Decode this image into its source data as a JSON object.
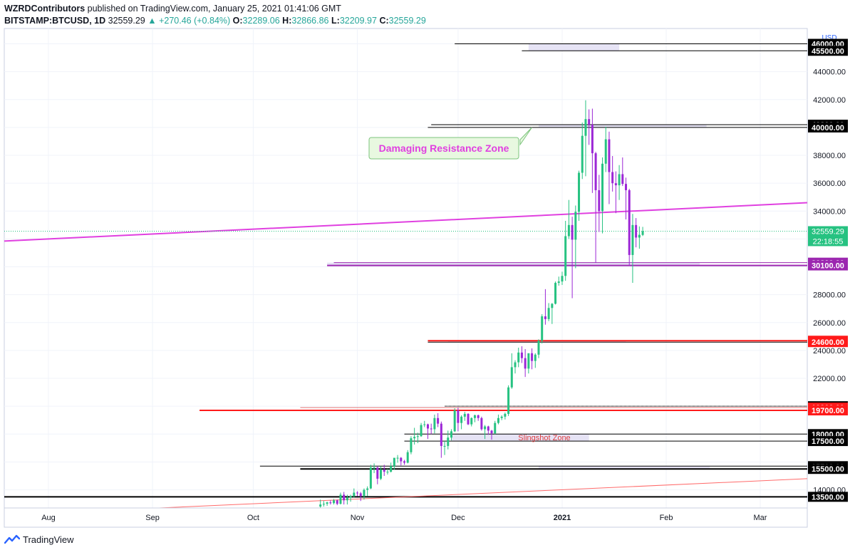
{
  "header": {
    "publisher": "WZRDContributors",
    "published_text": "published on TradingView.com, January 25, 2021 01:41:06 GMT",
    "symbol": "BITSTAMP:BTCUSD, 1D",
    "last": "32559.29",
    "change": "▲ +270.46 (+0.84%)",
    "open_label": "O:",
    "open": "32289.06",
    "high_label": "H:",
    "high": "32866.86",
    "low_label": "L:",
    "low": "32209.97",
    "close_label": "C:",
    "close": "32559.29"
  },
  "footer": {
    "brand": "TradingView",
    "logo_icon": "tradingview-logo-icon"
  },
  "colors": {
    "up": "#26c281",
    "down": "#9c27d6",
    "trend_magenta": "#e040e0",
    "support_purple": "#9c27b0",
    "red": "#ff1a1a",
    "zone_fill": "#e6e3f5",
    "callout_bg": "#e8f8e0",
    "callout_border": "#7cc47c",
    "callout_text": "#e040e0",
    "grid": "#f0f3fa",
    "axis_text": "#131722",
    "price_badge": "#26c281"
  },
  "chart_data": {
    "type": "candlestick",
    "symbol": "BITSTAMP:BTCUSD",
    "interval": "1D",
    "currency_label": "USD",
    "x_labels": [
      "Aug",
      "Sep",
      "Oct",
      "Nov",
      "Dec",
      "2021",
      "Feb",
      "Mar"
    ],
    "x_label_dates": [
      "2020-08-01",
      "2020-09-01",
      "2020-10-01",
      "2020-11-01",
      "2020-12-01",
      "2021-01-01",
      "2021-02-01",
      "2021-03-01"
    ],
    "y_range": [
      12700,
      47100
    ],
    "y_ticks": [
      14000,
      16000,
      18000,
      20000,
      22000,
      24000,
      26000,
      28000,
      30000,
      32000,
      34000,
      36000,
      38000,
      40000,
      42000,
      44000,
      46000
    ],
    "last_price": "32559.29",
    "countdown": "22:18:55",
    "grid": true,
    "candles": [
      {
        "d": "2020-10-21",
        "o": 12800,
        "h": 13300,
        "l": 12700,
        "c": 12950
      },
      {
        "d": "2020-10-22",
        "o": 12950,
        "h": 13200,
        "l": 12800,
        "c": 13000
      },
      {
        "d": "2020-10-23",
        "o": 13000,
        "h": 13150,
        "l": 12850,
        "c": 13100
      },
      {
        "d": "2020-10-24",
        "o": 13100,
        "h": 13250,
        "l": 12950,
        "c": 13050
      },
      {
        "d": "2020-10-25",
        "o": 13050,
        "h": 13350,
        "l": 12950,
        "c": 13250
      },
      {
        "d": "2020-10-26",
        "o": 13250,
        "h": 13300,
        "l": 12900,
        "c": 13000
      },
      {
        "d": "2020-10-27",
        "o": 13000,
        "h": 13800,
        "l": 12950,
        "c": 13650
      },
      {
        "d": "2020-10-28",
        "o": 13650,
        "h": 13850,
        "l": 12950,
        "c": 13250
      },
      {
        "d": "2020-10-29",
        "o": 13250,
        "h": 13650,
        "l": 12950,
        "c": 13450
      },
      {
        "d": "2020-10-30",
        "o": 13450,
        "h": 13650,
        "l": 13150,
        "c": 13550
      },
      {
        "d": "2020-10-31",
        "o": 13550,
        "h": 14100,
        "l": 13450,
        "c": 13800
      },
      {
        "d": "2020-11-01",
        "o": 13800,
        "h": 13900,
        "l": 13550,
        "c": 13750
      },
      {
        "d": "2020-11-02",
        "o": 13750,
        "h": 13850,
        "l": 13200,
        "c": 13550
      },
      {
        "d": "2020-11-03",
        "o": 13550,
        "h": 14100,
        "l": 13300,
        "c": 14000
      },
      {
        "d": "2020-11-04",
        "o": 14000,
        "h": 14250,
        "l": 13550,
        "c": 14100
      },
      {
        "d": "2020-11-05",
        "o": 14100,
        "h": 15800,
        "l": 14050,
        "c": 15600
      },
      {
        "d": "2020-11-06",
        "o": 15600,
        "h": 15900,
        "l": 15200,
        "c": 15600
      },
      {
        "d": "2020-11-07",
        "o": 15600,
        "h": 15700,
        "l": 14400,
        "c": 14800
      },
      {
        "d": "2020-11-08",
        "o": 14800,
        "h": 15700,
        "l": 14700,
        "c": 15450
      },
      {
        "d": "2020-11-09",
        "o": 15450,
        "h": 15800,
        "l": 15000,
        "c": 15300
      },
      {
        "d": "2020-11-10",
        "o": 15300,
        "h": 15500,
        "l": 15100,
        "c": 15300
      },
      {
        "d": "2020-11-11",
        "o": 15300,
        "h": 15950,
        "l": 15250,
        "c": 15700
      },
      {
        "d": "2020-11-12",
        "o": 15700,
        "h": 16200,
        "l": 15450,
        "c": 16300
      },
      {
        "d": "2020-11-13",
        "o": 16300,
        "h": 16500,
        "l": 15950,
        "c": 16300
      },
      {
        "d": "2020-11-14",
        "o": 16300,
        "h": 16350,
        "l": 15750,
        "c": 16050
      },
      {
        "d": "2020-11-15",
        "o": 16050,
        "h": 16150,
        "l": 15800,
        "c": 15950
      },
      {
        "d": "2020-11-16",
        "o": 15950,
        "h": 16850,
        "l": 15900,
        "c": 16700
      },
      {
        "d": "2020-11-17",
        "o": 16700,
        "h": 17850,
        "l": 16550,
        "c": 17700
      },
      {
        "d": "2020-11-18",
        "o": 17700,
        "h": 18450,
        "l": 17250,
        "c": 17800
      },
      {
        "d": "2020-11-19",
        "o": 17800,
        "h": 18100,
        "l": 17350,
        "c": 17850
      },
      {
        "d": "2020-11-20",
        "o": 17850,
        "h": 18800,
        "l": 17800,
        "c": 18650
      },
      {
        "d": "2020-11-21",
        "o": 18650,
        "h": 18950,
        "l": 18500,
        "c": 18700
      },
      {
        "d": "2020-11-22",
        "o": 18700,
        "h": 18750,
        "l": 17650,
        "c": 18400
      },
      {
        "d": "2020-11-23",
        "o": 18400,
        "h": 18750,
        "l": 18000,
        "c": 18350
      },
      {
        "d": "2020-11-24",
        "o": 18350,
        "h": 19400,
        "l": 18050,
        "c": 19150
      },
      {
        "d": "2020-11-25",
        "o": 19150,
        "h": 19500,
        "l": 18500,
        "c": 18750
      },
      {
        "d": "2020-11-26",
        "o": 18750,
        "h": 18900,
        "l": 16300,
        "c": 17150
      },
      {
        "d": "2020-11-27",
        "o": 17150,
        "h": 17500,
        "l": 16500,
        "c": 17150
      },
      {
        "d": "2020-11-28",
        "o": 17150,
        "h": 18250,
        "l": 16900,
        "c": 17750
      },
      {
        "d": "2020-11-29",
        "o": 17750,
        "h": 18350,
        "l": 17550,
        "c": 18200
      },
      {
        "d": "2020-11-30",
        "o": 18200,
        "h": 19850,
        "l": 18150,
        "c": 19700
      },
      {
        "d": "2020-12-01",
        "o": 19700,
        "h": 19900,
        "l": 18200,
        "c": 18800
      },
      {
        "d": "2020-12-02",
        "o": 18800,
        "h": 19350,
        "l": 18350,
        "c": 19250
      },
      {
        "d": "2020-12-03",
        "o": 19250,
        "h": 19600,
        "l": 18950,
        "c": 19450
      },
      {
        "d": "2020-12-04",
        "o": 19450,
        "h": 19500,
        "l": 18650,
        "c": 18700
      },
      {
        "d": "2020-12-05",
        "o": 18700,
        "h": 19200,
        "l": 18550,
        "c": 19150
      },
      {
        "d": "2020-12-06",
        "o": 19150,
        "h": 19400,
        "l": 18850,
        "c": 19350
      },
      {
        "d": "2020-12-07",
        "o": 19350,
        "h": 19400,
        "l": 18950,
        "c": 19150
      },
      {
        "d": "2020-12-08",
        "o": 19150,
        "h": 19250,
        "l": 18250,
        "c": 18350
      },
      {
        "d": "2020-12-09",
        "o": 18350,
        "h": 18650,
        "l": 17650,
        "c": 18550
      },
      {
        "d": "2020-12-10",
        "o": 18550,
        "h": 18600,
        "l": 17950,
        "c": 18250
      },
      {
        "d": "2020-12-11",
        "o": 18250,
        "h": 18300,
        "l": 17600,
        "c": 18050
      },
      {
        "d": "2020-12-12",
        "o": 18050,
        "h": 18950,
        "l": 18000,
        "c": 18800
      },
      {
        "d": "2020-12-13",
        "o": 18800,
        "h": 19400,
        "l": 18700,
        "c": 19150
      },
      {
        "d": "2020-12-14",
        "o": 19150,
        "h": 19350,
        "l": 19000,
        "c": 19250
      },
      {
        "d": "2020-12-15",
        "o": 19250,
        "h": 19550,
        "l": 19050,
        "c": 19450
      },
      {
        "d": "2020-12-16",
        "o": 19450,
        "h": 21500,
        "l": 19300,
        "c": 21350
      },
      {
        "d": "2020-12-17",
        "o": 21350,
        "h": 23800,
        "l": 21250,
        "c": 22800
      },
      {
        "d": "2020-12-18",
        "o": 22800,
        "h": 23300,
        "l": 22350,
        "c": 23150
      },
      {
        "d": "2020-12-19",
        "o": 23150,
        "h": 24200,
        "l": 22800,
        "c": 23850
      },
      {
        "d": "2020-12-20",
        "o": 23850,
        "h": 24300,
        "l": 23100,
        "c": 23450
      },
      {
        "d": "2020-12-21",
        "o": 23450,
        "h": 24100,
        "l": 22100,
        "c": 22700
      },
      {
        "d": "2020-12-22",
        "o": 22700,
        "h": 23800,
        "l": 22350,
        "c": 23800
      },
      {
        "d": "2020-12-23",
        "o": 23800,
        "h": 24150,
        "l": 22650,
        "c": 23250
      },
      {
        "d": "2020-12-24",
        "o": 23250,
        "h": 23800,
        "l": 22750,
        "c": 23700
      },
      {
        "d": "2020-12-25",
        "o": 23700,
        "h": 24800,
        "l": 23450,
        "c": 24700
      },
      {
        "d": "2020-12-26",
        "o": 24700,
        "h": 26600,
        "l": 24500,
        "c": 26450
      },
      {
        "d": "2020-12-27",
        "o": 26450,
        "h": 28400,
        "l": 25850,
        "c": 26250
      },
      {
        "d": "2020-12-28",
        "o": 26250,
        "h": 27400,
        "l": 26100,
        "c": 27050
      },
      {
        "d": "2020-12-29",
        "o": 27050,
        "h": 27400,
        "l": 25900,
        "c": 27350
      },
      {
        "d": "2020-12-30",
        "o": 27350,
        "h": 28950,
        "l": 27300,
        "c": 28850
      },
      {
        "d": "2020-12-31",
        "o": 28850,
        "h": 29300,
        "l": 28650,
        "c": 28950
      },
      {
        "d": "2021-01-01",
        "o": 28950,
        "h": 29650,
        "l": 28700,
        "c": 29350
      },
      {
        "d": "2021-01-02",
        "o": 29350,
        "h": 33300,
        "l": 29000,
        "c": 32200
      },
      {
        "d": "2021-01-03",
        "o": 32200,
        "h": 34800,
        "l": 32000,
        "c": 33000
      },
      {
        "d": "2021-01-04",
        "o": 33000,
        "h": 33600,
        "l": 27750,
        "c": 31950
      },
      {
        "d": "2021-01-05",
        "o": 31950,
        "h": 34400,
        "l": 29900,
        "c": 33950
      },
      {
        "d": "2021-01-06",
        "o": 33950,
        "h": 36900,
        "l": 33300,
        "c": 36750
      },
      {
        "d": "2021-01-07",
        "o": 36750,
        "h": 40350,
        "l": 36300,
        "c": 39400
      },
      {
        "d": "2021-01-08",
        "o": 39400,
        "h": 41950,
        "l": 36500,
        "c": 40600
      },
      {
        "d": "2021-01-09",
        "o": 40600,
        "h": 41300,
        "l": 38750,
        "c": 40200
      },
      {
        "d": "2021-01-10",
        "o": 40200,
        "h": 41350,
        "l": 35300,
        "c": 38150
      },
      {
        "d": "2021-01-11",
        "o": 38150,
        "h": 38250,
        "l": 30300,
        "c": 35500
      },
      {
        "d": "2021-01-12",
        "o": 35500,
        "h": 36600,
        "l": 32500,
        "c": 34000
      },
      {
        "d": "2021-01-13",
        "o": 34000,
        "h": 37850,
        "l": 32400,
        "c": 37400
      },
      {
        "d": "2021-01-14",
        "o": 37400,
        "h": 40050,
        "l": 36800,
        "c": 39150
      },
      {
        "d": "2021-01-15",
        "o": 39150,
        "h": 39700,
        "l": 34500,
        "c": 36800
      },
      {
        "d": "2021-01-16",
        "o": 36800,
        "h": 37950,
        "l": 35400,
        "c": 36000
      },
      {
        "d": "2021-01-17",
        "o": 36000,
        "h": 36850,
        "l": 33850,
        "c": 35850
      },
      {
        "d": "2021-01-18",
        "o": 35850,
        "h": 37300,
        "l": 34800,
        "c": 36650
      },
      {
        "d": "2021-01-19",
        "o": 36650,
        "h": 37850,
        "l": 35800,
        "c": 35950
      },
      {
        "d": "2021-01-20",
        "o": 35950,
        "h": 36400,
        "l": 33400,
        "c": 35500
      },
      {
        "d": "2021-01-21",
        "o": 35500,
        "h": 35600,
        "l": 30100,
        "c": 30850
      },
      {
        "d": "2021-01-22",
        "o": 30850,
        "h": 33800,
        "l": 28850,
        "c": 33000
      },
      {
        "d": "2021-01-23",
        "o": 33000,
        "h": 33500,
        "l": 31400,
        "c": 32100
      },
      {
        "d": "2021-01-24",
        "o": 32100,
        "h": 32900,
        "l": 31300,
        "c": 32300
      },
      {
        "d": "2021-01-25",
        "o": 32289.06,
        "h": 32866.86,
        "l": 32209.97,
        "c": 32559.29
      }
    ],
    "horizontal_levels": [
      {
        "price": 46000,
        "label": "46000.00",
        "color": "#000000"
      },
      {
        "price": 45500,
        "label": "45500.00",
        "color": "#000000"
      },
      {
        "price": 40200,
        "label": "40200.00",
        "color": "#000000"
      },
      {
        "price": 40000,
        "label": "40000.00",
        "color": "#000000"
      },
      {
        "price": 30300,
        "label": "30300.00",
        "color": "#9c27b0"
      },
      {
        "price": 30100,
        "label": "30100.00",
        "color": "#9c27b0"
      },
      {
        "price": 24700,
        "label": "24700.00",
        "color": "#ff1a1a"
      },
      {
        "price": 24600,
        "label": "24600.00",
        "color": "#ff1a1a"
      },
      {
        "price": 20000,
        "label": "20000.00",
        "color": "#000000"
      },
      {
        "price": 19900,
        "label": "19900.00",
        "color": "#ff1a1a"
      },
      {
        "price": 19700,
        "label": "19700.00",
        "color": "#ff1a1a"
      },
      {
        "price": 18000,
        "label": "18000.00",
        "color": "#000000"
      },
      {
        "price": 17500,
        "label": "17500.00",
        "color": "#000000"
      },
      {
        "price": 15700,
        "label": "15700.00",
        "color": "#000000"
      },
      {
        "price": 15500,
        "label": "15500.00",
        "color": "#000000"
      },
      {
        "price": 13500,
        "label": "13500.00",
        "color": "#000000"
      }
    ],
    "annotations": [
      {
        "text": "Damaging Resistance Zone",
        "date": "2020-12-25",
        "price": 40200
      },
      {
        "text": "Slingshot Zone",
        "date": "2020-12-15",
        "price": 17800
      }
    ]
  }
}
